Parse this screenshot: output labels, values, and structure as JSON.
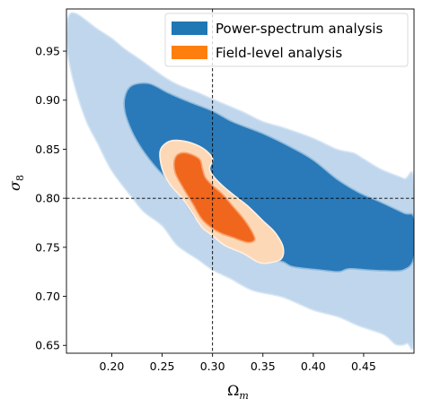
{
  "chart_data": {
    "type": "contour",
    "xlabel": "Ω",
    "xlabel_sub": "m",
    "ylabel": "σ",
    "ylabel_sub": "8",
    "xlim": [
      0.155,
      0.5
    ],
    "ylim": [
      0.642,
      0.993
    ],
    "xticks": [
      0.2,
      0.25,
      0.3,
      0.35,
      0.4,
      0.45
    ],
    "xtick_labels": [
      "0.20",
      "0.25",
      "0.30",
      "0.35",
      "0.40",
      "0.45"
    ],
    "yticks": [
      0.65,
      0.7,
      0.75,
      0.8,
      0.85,
      0.9,
      0.95
    ],
    "ytick_labels": [
      "0.65",
      "0.70",
      "0.75",
      "0.80",
      "0.85",
      "0.90",
      "0.95"
    ],
    "reference_lines": {
      "x": 0.3,
      "y": 0.8,
      "style": "dashed"
    },
    "legend_position": "top-right",
    "legend": [
      {
        "label": "Power-spectrum analysis",
        "color": "#1f77b4"
      },
      {
        "label": "Field-level analysis",
        "color": "#ff7f0e"
      }
    ],
    "series": [
      {
        "name": "Power-spectrum analysis",
        "contours": [
          {
            "level": "outer",
            "fill": "#c0d6ec",
            "stroke": "#d6e6f5",
            "points": [
              [
                0.157,
                0.985
              ],
              [
                0.165,
                0.988
              ],
              [
                0.185,
                0.973
              ],
              [
                0.2,
                0.963
              ],
              [
                0.213,
                0.952
              ],
              [
                0.23,
                0.94
              ],
              [
                0.25,
                0.925
              ],
              [
                0.265,
                0.916
              ],
              [
                0.287,
                0.907
              ],
              [
                0.3,
                0.901
              ],
              [
                0.33,
                0.888
              ],
              [
                0.35,
                0.878
              ],
              [
                0.37,
                0.872
              ],
              [
                0.4,
                0.861
              ],
              [
                0.423,
                0.85
              ],
              [
                0.44,
                0.846
              ],
              [
                0.45,
                0.84
              ],
              [
                0.468,
                0.829
              ],
              [
                0.49,
                0.82
              ],
              [
                0.5,
                0.814
              ],
              [
                0.5,
                0.66
              ],
              [
                0.493,
                0.652
              ],
              [
                0.482,
                0.651
              ],
              [
                0.47,
                0.661
              ],
              [
                0.445,
                0.67
              ],
              [
                0.425,
                0.679
              ],
              [
                0.4,
                0.686
              ],
              [
                0.37,
                0.699
              ],
              [
                0.34,
                0.706
              ],
              [
                0.318,
                0.718
              ],
              [
                0.3,
                0.727
              ],
              [
                0.285,
                0.738
              ],
              [
                0.265,
                0.752
              ],
              [
                0.25,
                0.772
              ],
              [
                0.232,
                0.786
              ],
              [
                0.22,
                0.801
              ],
              [
                0.2,
                0.828
              ],
              [
                0.186,
                0.856
              ],
              [
                0.175,
                0.878
              ],
              [
                0.165,
                0.908
              ],
              [
                0.158,
                0.937
              ],
              [
                0.155,
                0.96
              ]
            ]
          },
          {
            "level": "inner",
            "fill": "#2a7ab9",
            "stroke": "#8fbadd",
            "points": [
              [
                0.213,
                0.904
              ],
              [
                0.22,
                0.915
              ],
              [
                0.237,
                0.917
              ],
              [
                0.255,
                0.908
              ],
              [
                0.275,
                0.899
              ],
              [
                0.3,
                0.889
              ],
              [
                0.32,
                0.878
              ],
              [
                0.35,
                0.866
              ],
              [
                0.38,
                0.851
              ],
              [
                0.4,
                0.839
              ],
              [
                0.423,
                0.82
              ],
              [
                0.445,
                0.806
              ],
              [
                0.465,
                0.797
              ],
              [
                0.49,
                0.785
              ],
              [
                0.5,
                0.78
              ],
              [
                0.5,
                0.74
              ],
              [
                0.49,
                0.727
              ],
              [
                0.47,
                0.726
              ],
              [
                0.452,
                0.727
              ],
              [
                0.435,
                0.728
              ],
              [
                0.425,
                0.725
              ],
              [
                0.405,
                0.727
              ],
              [
                0.38,
                0.73
              ],
              [
                0.37,
                0.735
              ],
              [
                0.355,
                0.738
              ],
              [
                0.34,
                0.743
              ],
              [
                0.325,
                0.755
              ],
              [
                0.31,
                0.765
              ],
              [
                0.295,
                0.77
              ],
              [
                0.283,
                0.78
              ],
              [
                0.27,
                0.8
              ],
              [
                0.26,
                0.814
              ],
              [
                0.245,
                0.83
              ],
              [
                0.23,
                0.85
              ],
              [
                0.22,
                0.868
              ],
              [
                0.213,
                0.888
              ]
            ]
          }
        ]
      },
      {
        "name": "Field-level analysis",
        "contours": [
          {
            "level": "outer",
            "fill": "#fdd8b6",
            "stroke": "#fef0e3",
            "points": [
              [
                0.248,
                0.848
              ],
              [
                0.255,
                0.857
              ],
              [
                0.265,
                0.859
              ],
              [
                0.28,
                0.856
              ],
              [
                0.293,
                0.849
              ],
              [
                0.3,
                0.84
              ],
              [
                0.297,
                0.83
              ],
              [
                0.302,
                0.821
              ],
              [
                0.313,
                0.81
              ],
              [
                0.325,
                0.8
              ],
              [
                0.335,
                0.792
              ],
              [
                0.35,
                0.777
              ],
              [
                0.362,
                0.765
              ],
              [
                0.37,
                0.75
              ],
              [
                0.368,
                0.738
              ],
              [
                0.355,
                0.734
              ],
              [
                0.345,
                0.735
              ],
              [
                0.33,
                0.744
              ],
              [
                0.312,
                0.752
              ],
              [
                0.3,
                0.762
              ],
              [
                0.29,
                0.77
              ],
              [
                0.28,
                0.785
              ],
              [
                0.27,
                0.8
              ],
              [
                0.258,
                0.814
              ],
              [
                0.25,
                0.83
              ]
            ]
          },
          {
            "level": "inner",
            "fill": "#f0661c",
            "stroke": "#f7a06c",
            "points": [
              [
                0.262,
                0.838
              ],
              [
                0.266,
                0.845
              ],
              [
                0.275,
                0.846
              ],
              [
                0.287,
                0.84
              ],
              [
                0.29,
                0.83
              ],
              [
                0.293,
                0.821
              ],
              [
                0.3,
                0.813
              ],
              [
                0.31,
                0.804
              ],
              [
                0.32,
                0.792
              ],
              [
                0.33,
                0.78
              ],
              [
                0.338,
                0.768
              ],
              [
                0.342,
                0.758
              ],
              [
                0.335,
                0.755
              ],
              [
                0.32,
                0.76
              ],
              [
                0.305,
                0.766
              ],
              [
                0.29,
                0.778
              ],
              [
                0.28,
                0.795
              ],
              [
                0.27,
                0.812
              ],
              [
                0.263,
                0.826
              ]
            ]
          }
        ]
      }
    ]
  }
}
